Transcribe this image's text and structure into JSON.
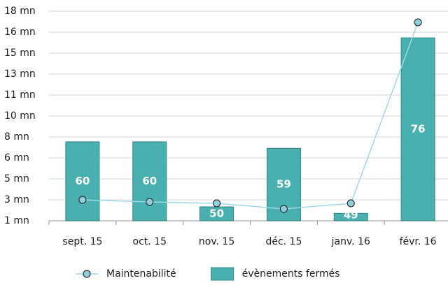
{
  "chart_data": {
    "type": "bar_line",
    "categories": [
      "sept. 15",
      "oct. 15",
      "nov. 15",
      "déc. 15",
      "janv. 16",
      "févr. 16"
    ],
    "series": [
      {
        "name": "Maintenabilité",
        "type": "line",
        "color": "#9fd8e8",
        "values": [
          2.79,
          2.62,
          2.51,
          2.05,
          2.51,
          17.29
        ]
      },
      {
        "name": "évènements fermés",
        "type": "bar",
        "axis": "y2",
        "color": "#48b0ae",
        "values": [
          60,
          60,
          50,
          59,
          49,
          76
        ]
      }
    ],
    "ylim": [
      1.08,
      18.2
    ],
    "yticks": [
      {
        "value": 1.08,
        "label": "1 mn"
      },
      {
        "value": 2.792,
        "label": "3 mn"
      },
      {
        "value": 4.504,
        "label": "5 mn"
      },
      {
        "value": 6.216,
        "label": "6 mn"
      },
      {
        "value": 7.928,
        "label": "8 mn"
      },
      {
        "value": 9.64,
        "label": "10 mn"
      },
      {
        "value": 11.352,
        "label": "11 mn"
      },
      {
        "value": 13.064,
        "label": "13 mn"
      },
      {
        "value": 14.776,
        "label": "15 mn"
      },
      {
        "value": 16.488,
        "label": "16 mn"
      },
      {
        "value": 18.2,
        "label": "18 mn"
      }
    ],
    "y2lim": [
      47.85,
      80.1
    ],
    "grid": true,
    "legend": "bottom"
  }
}
